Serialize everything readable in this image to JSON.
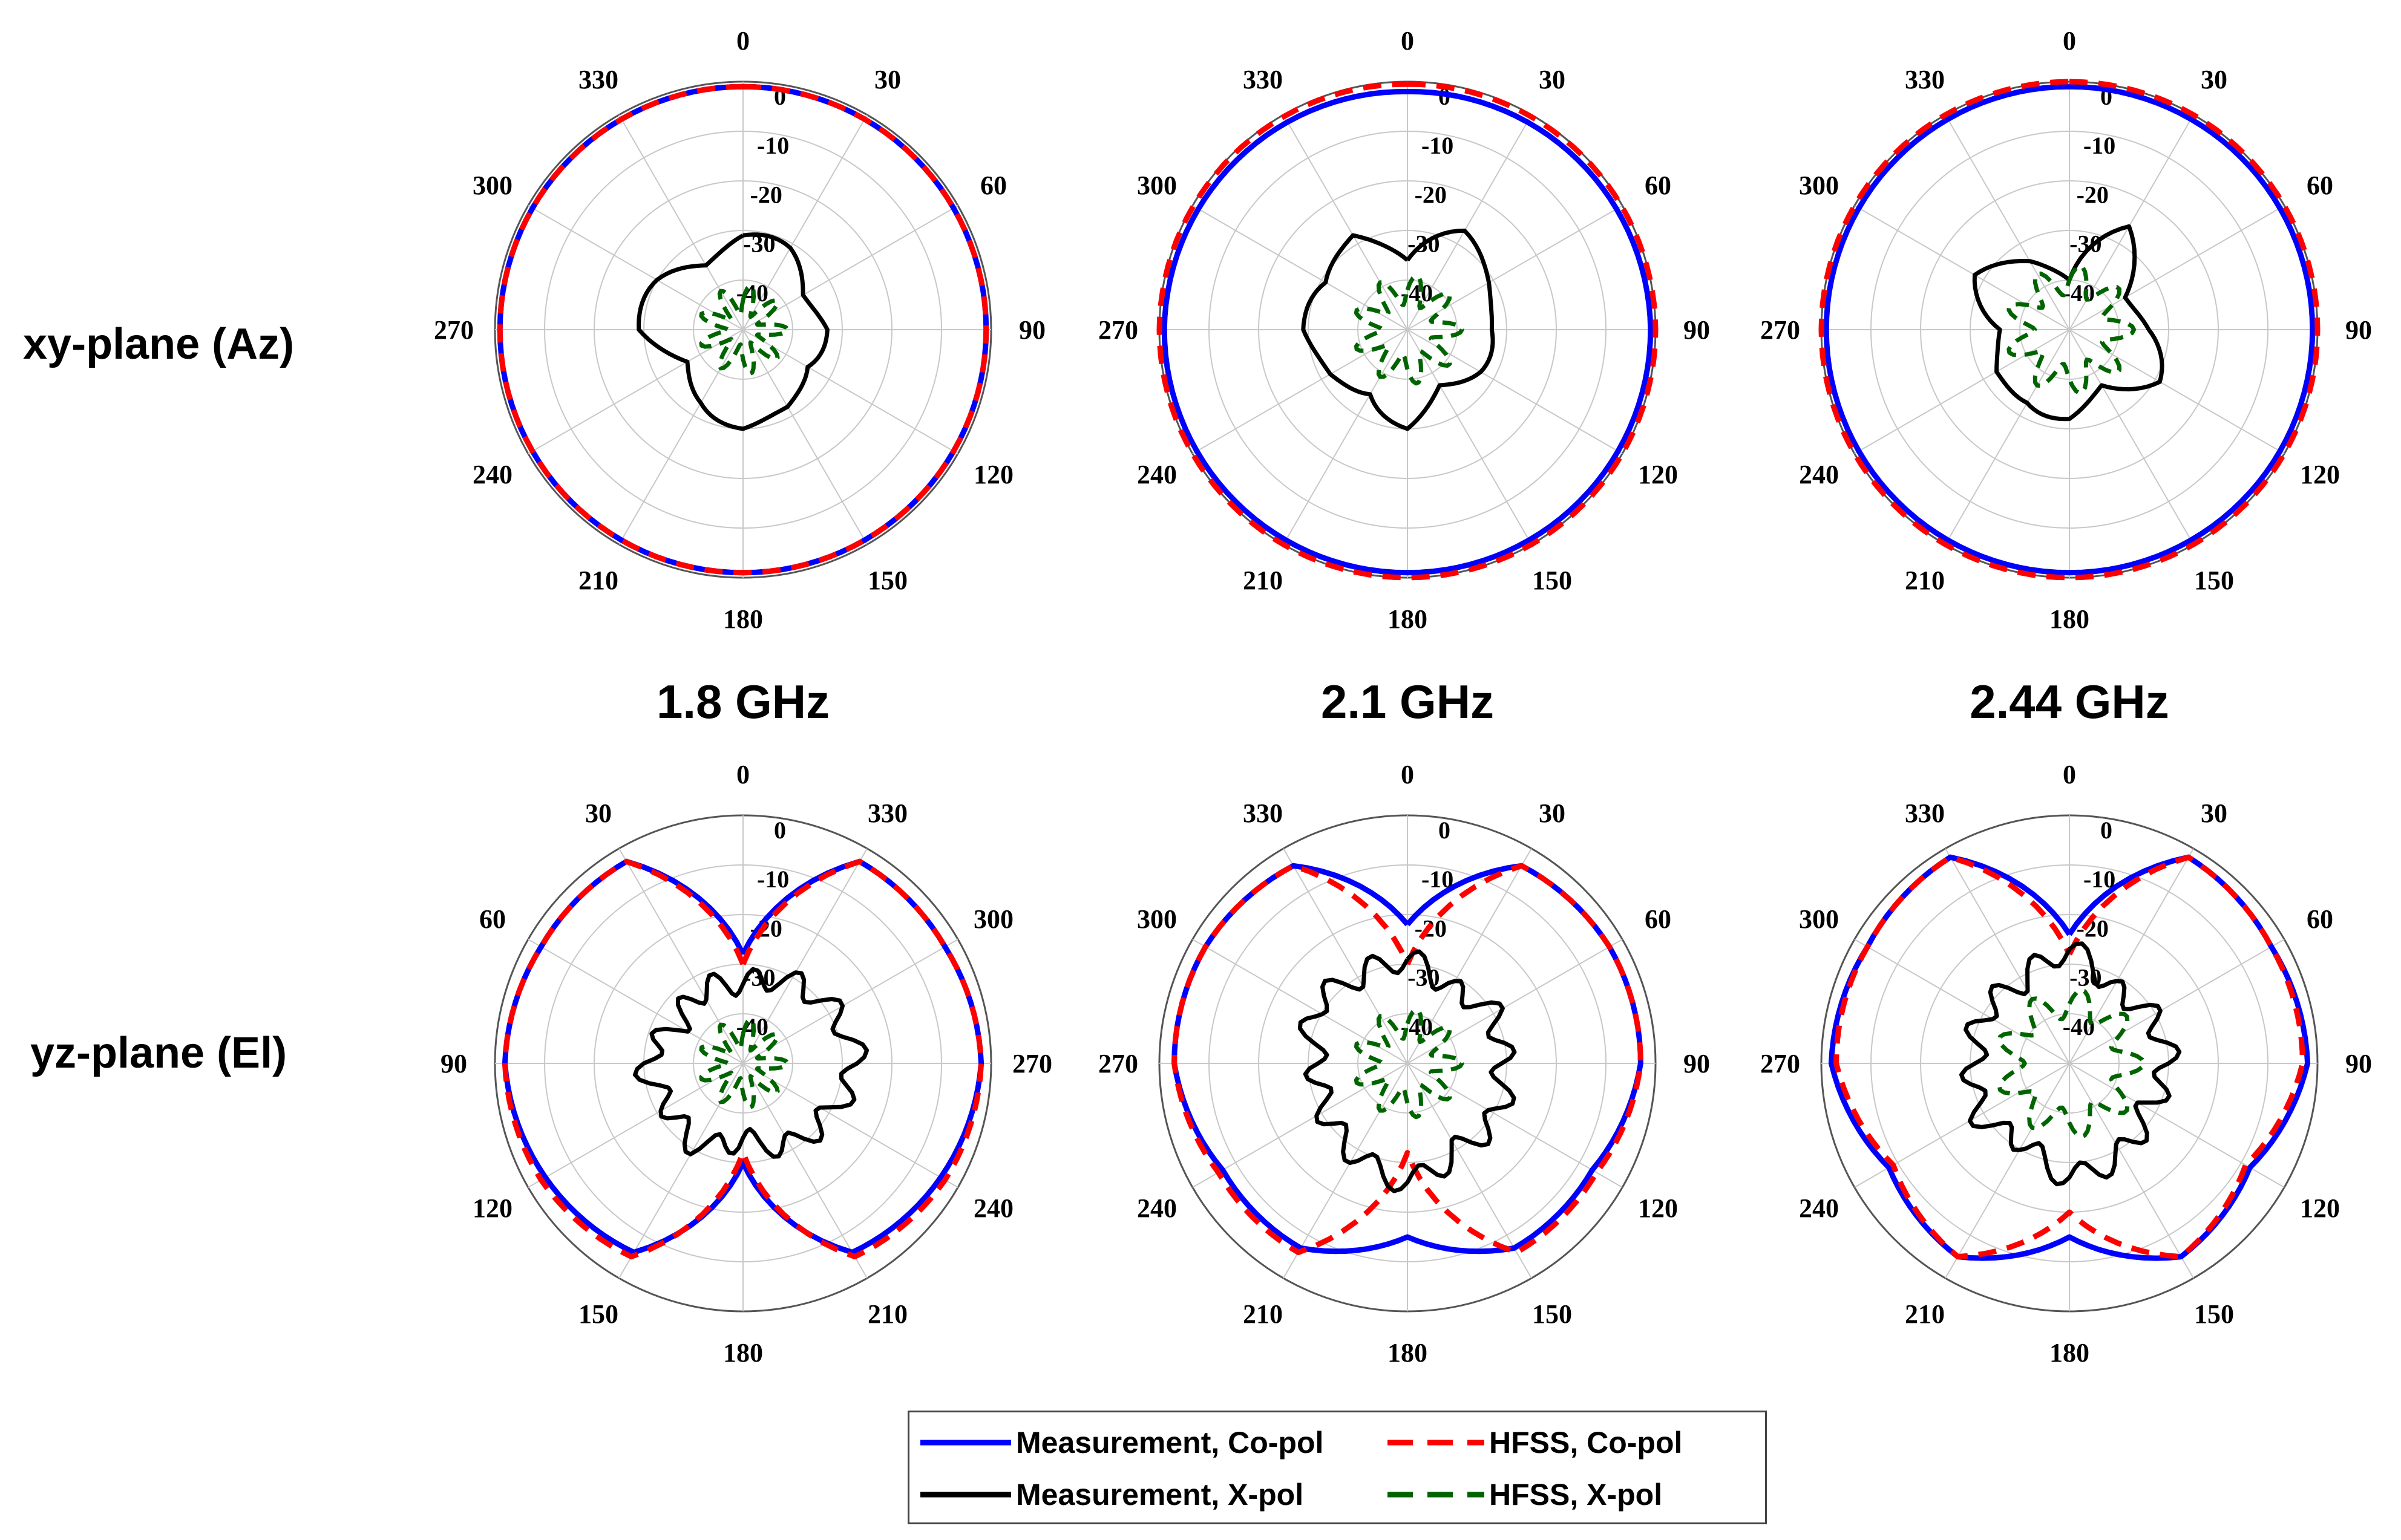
{
  "row_labels": {
    "top": "xy-plane (Az)",
    "bottom": "yz-plane (El)"
  },
  "frequency_labels": [
    "1.8 GHz",
    "2.1 GHz",
    "2.44 GHz"
  ],
  "legend": {
    "measurement_copol": "Measurement, Co-pol",
    "hfss_copol": "HFSS, Co-pol",
    "measurement_xpol": "Measurement, X-pol",
    "hfss_xpol": "HFSS, X-pol"
  },
  "colors": {
    "measurement_copol": "#0000ff",
    "hfss_copol": "#ff0000",
    "measurement_xpol": "#000000",
    "hfss_xpol": "#006400",
    "grid": "#c8c8c8"
  },
  "chart_data": [
    {
      "type": "polar",
      "plane": "xy-plane (Az)",
      "frequency": "1.8 GHz",
      "radial_ticks": [
        "0",
        "-10",
        "-20",
        "-30",
        "-40"
      ],
      "rlim": [
        -50,
        0
      ],
      "angle_labels": [
        "0",
        "30",
        "60",
        "90",
        "120",
        "150",
        "180",
        "210",
        "240",
        "270",
        "300",
        "330"
      ],
      "direction": "clockwise",
      "series": [
        {
          "name": "Measurement, Co-pol",
          "angles": [
            0,
            90,
            180,
            270
          ],
          "values": [
            -1,
            -1,
            -1,
            -1
          ]
        },
        {
          "name": "HFSS, Co-pol",
          "angles": [
            0,
            90,
            180,
            270
          ],
          "values": [
            -1,
            -1,
            -1,
            -1
          ]
        },
        {
          "name": "Measurement, X-pol",
          "angles": [
            0,
            30,
            60,
            90,
            120,
            150,
            180,
            210,
            240,
            270,
            300,
            330
          ],
          "values": [
            -31,
            -32,
            -35,
            -33,
            -36,
            -31,
            -30,
            -34,
            -36,
            -29,
            -31,
            -34
          ]
        },
        {
          "name": "HFSS, X-pol",
          "angles": [
            0,
            90,
            180,
            270
          ],
          "values": [
            -44,
            -44,
            -44,
            -44
          ]
        }
      ]
    },
    {
      "type": "polar",
      "plane": "xy-plane (Az)",
      "frequency": "2.1 GHz",
      "radial_ticks": [
        "0",
        "-10",
        "-20",
        "-30",
        "-40"
      ],
      "rlim": [
        -50,
        0
      ],
      "angle_labels": [
        "0",
        "30",
        "60",
        "90",
        "120",
        "150",
        "180",
        "210",
        "240",
        "270",
        "300",
        "330"
      ],
      "direction": "clockwise",
      "series": [
        {
          "name": "Measurement, Co-pol",
          "angles": [
            0,
            90,
            180,
            270
          ],
          "values": [
            -2,
            -1,
            -1,
            -1
          ]
        },
        {
          "name": "HFSS, Co-pol",
          "angles": [
            0,
            90,
            180,
            270
          ],
          "values": [
            -0.5,
            0,
            0,
            0
          ]
        },
        {
          "name": "Measurement, X-pol",
          "angles": [
            0,
            30,
            60,
            90,
            120,
            150,
            180,
            210,
            240,
            270,
            300,
            330
          ],
          "values": [
            -36,
            -28,
            -30,
            -33,
            -34,
            -36,
            -30,
            -36,
            -31,
            -29,
            -32,
            -27
          ]
        },
        {
          "name": "HFSS, X-pol",
          "angles": [
            0,
            90,
            180,
            270
          ],
          "values": [
            -42,
            -42,
            -42,
            -42
          ]
        }
      ]
    },
    {
      "type": "polar",
      "plane": "xy-plane (Az)",
      "frequency": "2.44 GHz",
      "radial_ticks": [
        "0",
        "-10",
        "-20",
        "-30",
        "-40"
      ],
      "rlim": [
        -50,
        0
      ],
      "angle_labels": [
        "0",
        "30",
        "60",
        "90",
        "120",
        "150",
        "180",
        "210",
        "240",
        "270",
        "300",
        "330"
      ],
      "direction": "clockwise",
      "series": [
        {
          "name": "Measurement, Co-pol",
          "angles": [
            0,
            90,
            180,
            270
          ],
          "values": [
            -1,
            -1,
            -1,
            -1
          ]
        },
        {
          "name": "HFSS, Co-pol",
          "angles": [
            0,
            90,
            180,
            270
          ],
          "values": [
            0,
            0,
            0,
            0
          ]
        },
        {
          "name": "Measurement, X-pol",
          "angles": [
            0,
            30,
            60,
            90,
            120,
            150,
            180,
            210,
            240,
            270,
            300,
            330
          ],
          "values": [
            -40,
            -27,
            -36,
            -34,
            -30,
            -36,
            -32,
            -34,
            -32,
            -36,
            -29,
            -33
          ]
        },
        {
          "name": "HFSS, X-pol",
          "angles": [
            0,
            90,
            180,
            270
          ],
          "values": [
            -40,
            -40,
            -40,
            -40
          ]
        }
      ]
    },
    {
      "type": "polar",
      "plane": "yz-plane (El)",
      "frequency": "1.8 GHz",
      "radial_ticks": [
        "0",
        "-10",
        "-20",
        "-30",
        "-40"
      ],
      "rlim": [
        -50,
        0
      ],
      "angle_labels": [
        "0",
        "330",
        "300",
        "270",
        "240",
        "210",
        "180",
        "150",
        "120",
        "90",
        "60",
        "30"
      ],
      "direction": "counterclockwise",
      "series": [
        {
          "name": "Measurement, Co-pol",
          "angles": [
            0,
            30,
            60,
            90,
            120,
            150,
            180
          ],
          "values": [
            -28,
            -3,
            -3,
            -2,
            -4,
            -6,
            -30
          ]
        },
        {
          "name": "HFSS, Co-pol",
          "angles": [
            0,
            30,
            60,
            90,
            120,
            150,
            180
          ],
          "values": [
            -30,
            -3,
            -3,
            -2,
            -3,
            -5,
            -32
          ]
        },
        {
          "name": "Measurement, X-pol",
          "angles": [
            0,
            30,
            60,
            90,
            120,
            150,
            180,
            210,
            240,
            270,
            300,
            330
          ],
          "values": [
            -34,
            -31,
            -29,
            -27,
            -30,
            -31,
            -35,
            -31,
            -33,
            -30,
            -35,
            -33
          ]
        },
        {
          "name": "HFSS, X-pol",
          "angles": [
            0,
            90,
            180,
            270
          ],
          "values": [
            -44,
            -44,
            -44,
            -44
          ]
        }
      ]
    },
    {
      "type": "polar",
      "plane": "yz-plane (El)",
      "frequency": "2.1 GHz",
      "radial_ticks": [
        "0",
        "-10",
        "-20",
        "-30",
        "-40"
      ],
      "rlim": [
        -50,
        0
      ],
      "angle_labels": [
        "0",
        "30",
        "60",
        "90",
        "120",
        "150",
        "180",
        "210",
        "240",
        "270",
        "300",
        "330"
      ],
      "direction": "clockwise",
      "series": [
        {
          "name": "Measurement, Co-pol",
          "angles": [
            0,
            30,
            60,
            90,
            120,
            150,
            180
          ],
          "values": [
            -22,
            -4,
            -3,
            -3,
            -7,
            -7,
            -15
          ]
        },
        {
          "name": "HFSS, Co-pol",
          "angles": [
            0,
            30,
            60,
            90,
            120,
            150,
            180
          ],
          "values": [
            -30,
            -4,
            -3,
            -3,
            -6,
            -6,
            -32
          ]
        },
        {
          "name": "Measurement, X-pol",
          "angles": [
            0,
            30,
            60,
            90,
            120,
            150,
            180,
            210,
            240,
            270,
            300,
            330
          ],
          "values": [
            -29,
            -33,
            -30,
            -31,
            -29,
            -30,
            -26,
            -29,
            -31,
            -32,
            -28,
            -30
          ]
        },
        {
          "name": "HFSS, X-pol",
          "angles": [
            0,
            90,
            180,
            270
          ],
          "values": [
            -42,
            -42,
            -42,
            -42
          ]
        }
      ]
    },
    {
      "type": "polar",
      "plane": "yz-plane (El)",
      "frequency": "2.44 GHz",
      "radial_ticks": [
        "0",
        "-10",
        "-20",
        "-30",
        "-40"
      ],
      "rlim": [
        -50,
        0
      ],
      "angle_labels": [
        "0",
        "30",
        "60",
        "90",
        "120",
        "150",
        "180",
        "210",
        "240",
        "270",
        "300",
        "330"
      ],
      "direction": "clockwise",
      "series": [
        {
          "name": "Measurement, Co-pol",
          "angles": [
            0,
            30,
            60,
            90,
            120,
            150,
            180
          ],
          "values": [
            -24,
            -2,
            -3,
            -2,
            -8,
            -5,
            -15
          ]
        },
        {
          "name": "HFSS, Co-pol",
          "angles": [
            0,
            30,
            60,
            90,
            120,
            150,
            180
          ],
          "values": [
            -28,
            -2,
            -3,
            -3,
            -9,
            -5,
            -20
          ]
        },
        {
          "name": "Measurement, X-pol",
          "angles": [
            0,
            30,
            60,
            90,
            120,
            150,
            180,
            210,
            240,
            270,
            300,
            330
          ],
          "values": [
            -27,
            -33,
            -31,
            -30,
            -32,
            -29,
            -27,
            -32,
            -29,
            -31,
            -30,
            -31
          ]
        },
        {
          "name": "HFSS, X-pol",
          "angles": [
            0,
            90,
            180,
            270
          ],
          "values": [
            -38,
            -38,
            -38,
            -38
          ]
        }
      ]
    }
  ]
}
